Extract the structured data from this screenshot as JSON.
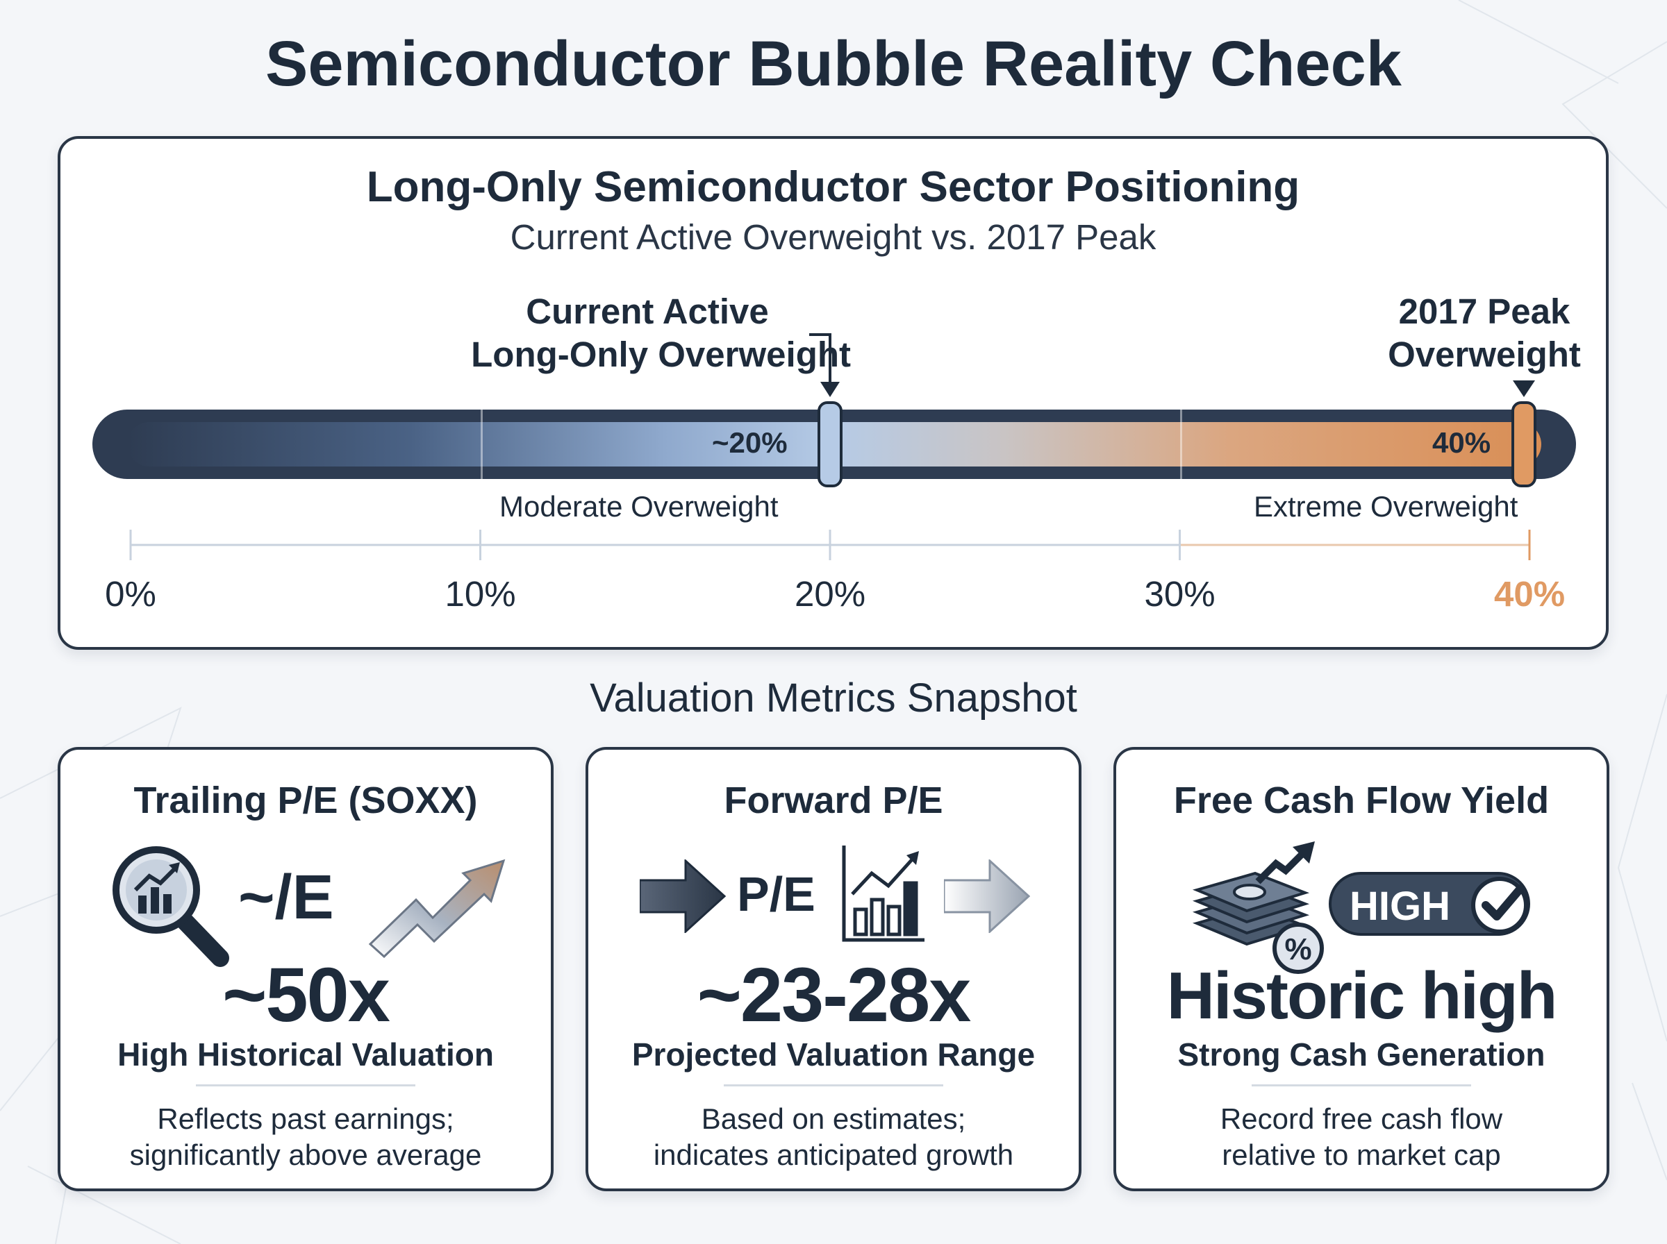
{
  "title": "Semiconductor Bubble Reality Check",
  "positioning_panel": {
    "title": "Long-Only Semiconductor Sector Positioning",
    "subtitle": "Current Active Overweight vs. 2017 Peak",
    "current_callout": [
      "Current Active",
      "Long-Only Overweight"
    ],
    "peak_callout": [
      "2017 Peak",
      "Overweight"
    ],
    "current_value_label": "~20%",
    "peak_value_label": "40%",
    "current_value": 20,
    "peak_value": 40,
    "scale_min": 0,
    "scale_max": 40,
    "zone_labels": [
      "Moderate Overweight",
      "Extreme Overweight"
    ],
    "tick_labels": [
      "0%",
      "10%",
      "20%",
      "30%",
      "40%"
    ],
    "tick_values": [
      0,
      10,
      20,
      30,
      40
    ],
    "colors": {
      "bar_dark": "#2e3c52",
      "current_marker": "#b6cbe6",
      "peak_marker": "#e09a63",
      "peak_tick": "#e09a63"
    }
  },
  "section_title": "Valuation Metrics Snapshot",
  "cards": [
    {
      "title": "Trailing P/E (SOXX)",
      "icon_text": "~/E",
      "icons": [
        "magnifier-chart-icon",
        "trend-up-arrow-icon"
      ],
      "value": "~50x",
      "subtitle": "High Historical Valuation",
      "description": [
        "Reflects past earnings;",
        "significantly above average"
      ]
    },
    {
      "title": "Forward P/E",
      "icon_text": "P/E",
      "icons": [
        "arrow-right-icon",
        "bar-chart-icon",
        "arrow-right-faded-icon"
      ],
      "value": "~23-28x",
      "subtitle": "Projected Valuation Range",
      "description": [
        "Based on estimates;",
        "indicates anticipated growth"
      ]
    },
    {
      "title": "Free Cash Flow Yield",
      "badge": "HIGH",
      "icons": [
        "money-stack-icon",
        "percent-icon",
        "check-circle-icon"
      ],
      "value": "Historic high",
      "subtitle": "Strong Cash Generation",
      "description": [
        "Record free cash flow",
        "relative to market cap"
      ]
    }
  ]
}
